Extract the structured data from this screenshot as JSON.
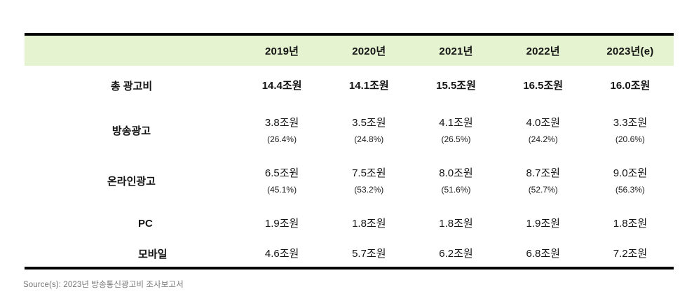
{
  "colors": {
    "header_bg": "#e5f3d0",
    "table_border": "#000000",
    "text": "#141414",
    "source_text": "#757575"
  },
  "chart_data": {
    "type": "table",
    "categories": [
      "2019년",
      "2020년",
      "2021년",
      "2022년",
      "2023년(e)"
    ],
    "unit": "조원",
    "rows": [
      {
        "label": "총 광고비",
        "values": [
          "14.4조원",
          "14.1조원",
          "15.5조원",
          "16.5조원",
          "16.0조원"
        ],
        "values_trillion_krw": [
          14.4,
          14.1,
          15.5,
          16.5,
          16.0
        ],
        "emphasis": true
      },
      {
        "label": "방송광고",
        "values": [
          "3.8조원",
          "3.5조원",
          "4.1조원",
          "4.0조원",
          "3.3조원"
        ],
        "values_trillion_krw": [
          3.8,
          3.5,
          4.1,
          4.0,
          3.3
        ],
        "percents": [
          "(26.4%)",
          "(24.8%)",
          "(26.5%)",
          "(24.2%)",
          "(20.6%)"
        ],
        "share_pct": [
          26.4,
          24.8,
          26.5,
          24.2,
          20.6
        ]
      },
      {
        "label": "온라인광고",
        "values": [
          "6.5조원",
          "7.5조원",
          "8.0조원",
          "8.7조원",
          "9.0조원"
        ],
        "values_trillion_krw": [
          6.5,
          7.5,
          8.0,
          8.7,
          9.0
        ],
        "percents": [
          "(45.1%)",
          "(53.2%)",
          "(51.6%)",
          "(52.7%)",
          "(56.3%)"
        ],
        "share_pct": [
          45.1,
          53.2,
          51.6,
          52.7,
          56.3
        ]
      },
      {
        "label": "PC",
        "values": [
          "1.9조원",
          "1.8조원",
          "1.8조원",
          "1.9조원",
          "1.8조원"
        ],
        "values_trillion_krw": [
          1.9,
          1.8,
          1.8,
          1.9,
          1.8
        ],
        "indented": true
      },
      {
        "label": "모바일",
        "values": [
          "4.6조원",
          "5.7조원",
          "6.2조원",
          "6.8조원",
          "7.2조원"
        ],
        "values_trillion_krw": [
          4.6,
          5.7,
          6.2,
          6.8,
          7.2
        ],
        "indented": true
      }
    ],
    "legend_position": "none",
    "grid": false,
    "source": "Source(s): 2023년 방송통신광고비 조사보고서"
  }
}
